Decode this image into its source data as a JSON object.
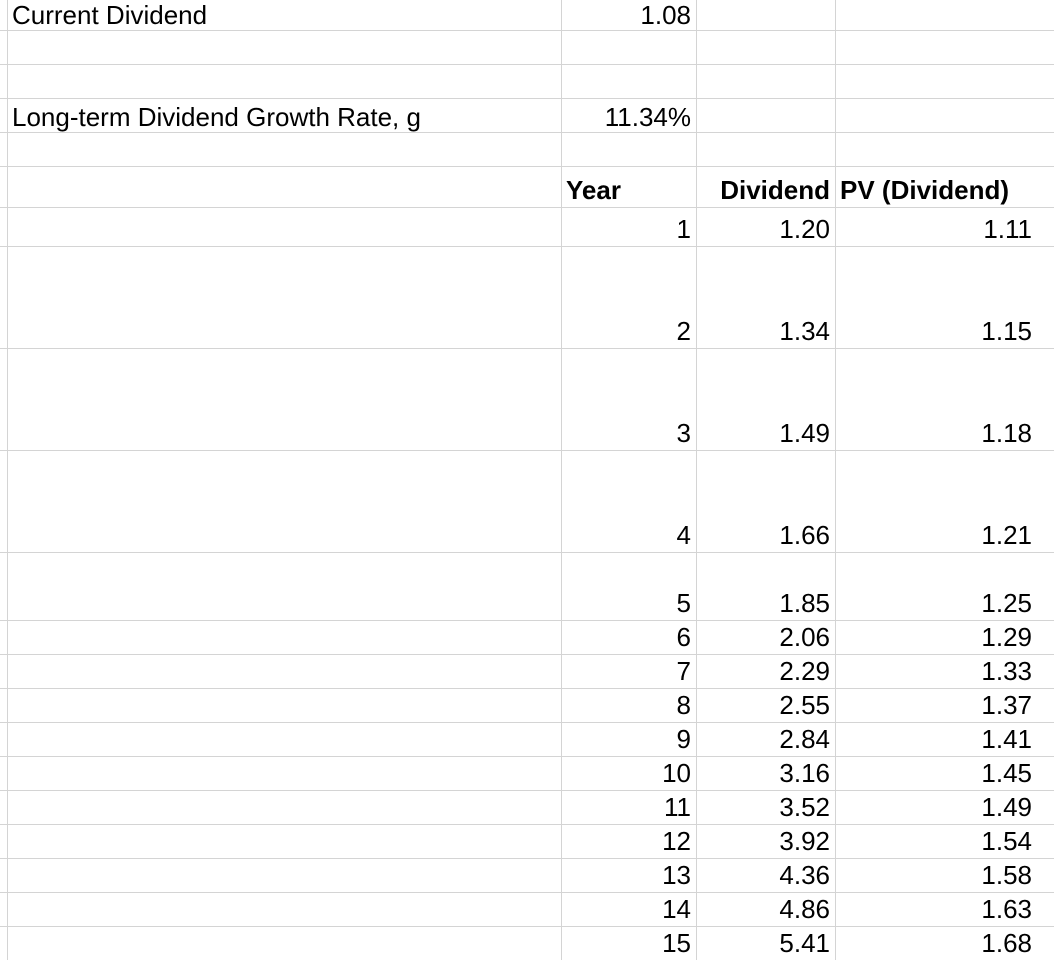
{
  "top": {
    "current_dividend_label": "Current Dividend",
    "current_dividend_value": "1.08",
    "growth_label": "Long-term Dividend Growth Rate, g",
    "growth_value": "11.34%"
  },
  "table": {
    "headers": [
      "Year",
      "Dividend",
      "PV (Dividend)"
    ],
    "rows": [
      [
        "1",
        "1.20",
        "1.11"
      ],
      [
        "2",
        "1.34",
        "1.15"
      ],
      [
        "3",
        "1.49",
        "1.18"
      ],
      [
        "4",
        "1.66",
        "1.21"
      ],
      [
        "5",
        "1.85",
        "1.25"
      ],
      [
        "6",
        "2.06",
        "1.29"
      ],
      [
        "7",
        "2.29",
        "1.33"
      ],
      [
        "8",
        "2.55",
        "1.37"
      ],
      [
        "9",
        "2.84",
        "1.41"
      ],
      [
        "10",
        "3.16",
        "1.45"
      ],
      [
        "11",
        "3.52",
        "1.49"
      ],
      [
        "12",
        "3.92",
        "1.54"
      ],
      [
        "13",
        "4.36",
        "1.58"
      ],
      [
        "14",
        "4.86",
        "1.63"
      ],
      [
        "15",
        "5.41",
        "1.68"
      ]
    ]
  },
  "colors": {
    "gridline": "#d4d4d4",
    "text": "#000000",
    "background": "#ffffff"
  }
}
